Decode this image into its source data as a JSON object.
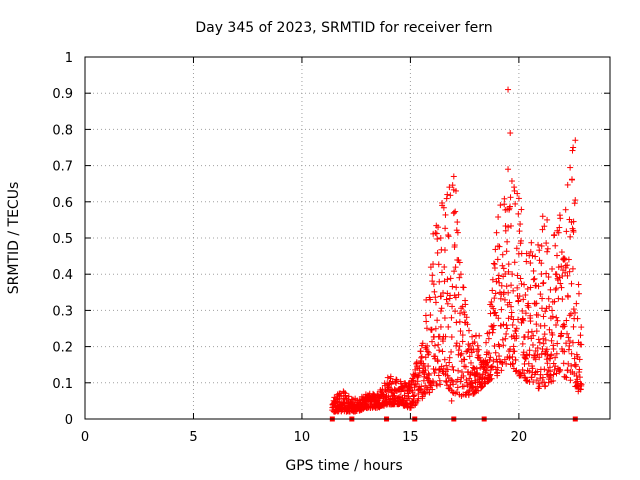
{
  "chart_data": {
    "type": "scatter",
    "title": "Day 345 of 2023, SRMTID for receiver fern",
    "xlabel": "GPS time / hours",
    "ylabel": "SRMTID / TECUs",
    "xlim": [
      0,
      24.2
    ],
    "ylim": [
      0,
      1
    ],
    "xticks": [
      0,
      5,
      10,
      15,
      20
    ],
    "yticks": [
      0,
      0.1,
      0.2,
      0.3,
      0.4,
      0.5,
      0.6,
      0.7,
      0.8,
      0.9,
      1
    ],
    "xtick_labels": [
      "0",
      "5",
      "10",
      "15",
      "20"
    ],
    "ytick_labels": [
      "0",
      "0.1",
      "0.2",
      "0.3",
      "0.4",
      "0.5",
      "0.6",
      "0.7",
      "0.8",
      "0.9",
      "1"
    ],
    "grid": true,
    "marker": "+",
    "color": "#ff0000",
    "envelope": [
      {
        "x": 11.4,
        "low": 0.02,
        "high": 0.06
      },
      {
        "x": 12.0,
        "low": 0.02,
        "high": 0.08
      },
      {
        "x": 12.5,
        "low": 0.02,
        "high": 0.06
      },
      {
        "x": 13.0,
        "low": 0.03,
        "high": 0.07
      },
      {
        "x": 13.5,
        "low": 0.03,
        "high": 0.07
      },
      {
        "x": 14.0,
        "low": 0.04,
        "high": 0.12
      },
      {
        "x": 14.5,
        "low": 0.04,
        "high": 0.11
      },
      {
        "x": 15.0,
        "low": 0.03,
        "high": 0.1
      },
      {
        "x": 15.5,
        "low": 0.05,
        "high": 0.2
      },
      {
        "x": 16.0,
        "low": 0.08,
        "high": 0.5
      },
      {
        "x": 16.5,
        "low": 0.1,
        "high": 0.62
      },
      {
        "x": 17.0,
        "low": 0.07,
        "high": 0.67
      },
      {
        "x": 17.5,
        "low": 0.06,
        "high": 0.35
      },
      {
        "x": 18.0,
        "low": 0.07,
        "high": 0.25
      },
      {
        "x": 18.5,
        "low": 0.1,
        "high": 0.22
      },
      {
        "x": 19.0,
        "low": 0.12,
        "high": 0.55
      },
      {
        "x": 19.5,
        "low": 0.15,
        "high": 0.69
      },
      {
        "x": 20.0,
        "low": 0.12,
        "high": 0.62
      },
      {
        "x": 20.5,
        "low": 0.1,
        "high": 0.48
      },
      {
        "x": 21.0,
        "low": 0.08,
        "high": 0.55
      },
      {
        "x": 21.5,
        "low": 0.1,
        "high": 0.5
      },
      {
        "x": 22.0,
        "low": 0.12,
        "high": 0.6
      },
      {
        "x": 22.5,
        "low": 0.1,
        "high": 0.77
      },
      {
        "x": 22.9,
        "low": 0.06,
        "high": 0.22
      }
    ],
    "highlights": [
      {
        "x": 19.5,
        "y": 0.91
      },
      {
        "x": 19.6,
        "y": 0.79
      },
      {
        "x": 22.6,
        "y": 0.77
      },
      {
        "x": 22.5,
        "y": 0.75
      },
      {
        "x": 19.5,
        "y": 0.69
      },
      {
        "x": 17.0,
        "y": 0.67
      },
      {
        "x": 17.1,
        "y": 0.63
      },
      {
        "x": 16.7,
        "y": 0.62
      },
      {
        "x": 19.8,
        "y": 0.63
      },
      {
        "x": 21.3,
        "y": 0.55
      },
      {
        "x": 16.4,
        "y": 0.5
      },
      {
        "x": 21.1,
        "y": 0.56
      },
      {
        "x": 16.9,
        "y": 0.05
      },
      {
        "x": 21.2,
        "y": 0.09
      },
      {
        "x": 19.0,
        "y": 0.12
      },
      {
        "x": 18.0,
        "y": 0.08
      }
    ],
    "baseline_markers_x": [
      11.4,
      12.3,
      13.9,
      15.2,
      17.0,
      18.4,
      22.6
    ],
    "point_count": 1300
  }
}
